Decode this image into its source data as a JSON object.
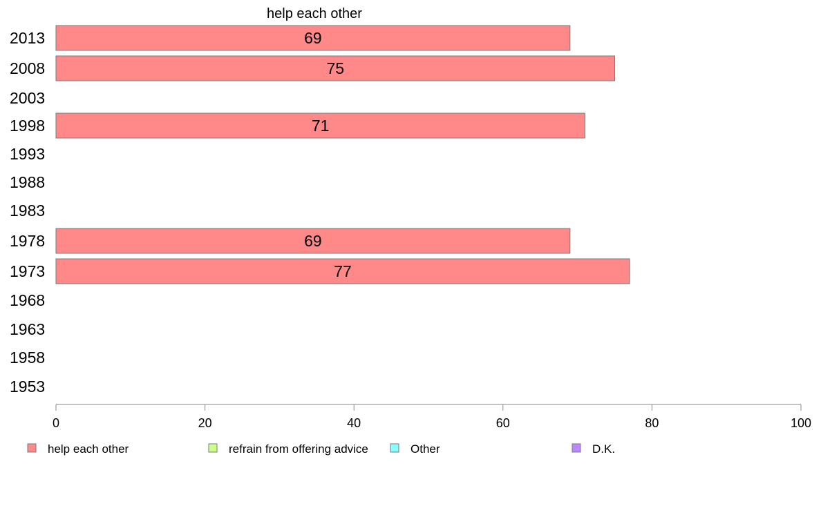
{
  "chart_data": {
    "type": "bar",
    "orientation": "horizontal",
    "series_title": "help each other",
    "categories": [
      "2013",
      "2008",
      "2003",
      "1998",
      "1993",
      "1988",
      "1983",
      "1978",
      "1973",
      "1968",
      "1963",
      "1958",
      "1953"
    ],
    "series": [
      {
        "name": "help each other",
        "color": "#ff8888",
        "values": [
          69,
          75,
          null,
          71,
          null,
          null,
          null,
          69,
          77,
          null,
          null,
          null,
          null
        ]
      }
    ],
    "xlim": [
      0,
      100
    ],
    "xticks": [
      0,
      20,
      40,
      60,
      80,
      100
    ],
    "legend": {
      "placement": "bottom",
      "items": [
        {
          "label": "help each other",
          "color": "#ff8888"
        },
        {
          "label": "refrain from offering advice",
          "color": "#ccff88"
        },
        {
          "label": "Other",
          "color": "#88ffff"
        },
        {
          "label": "D.K.",
          "color": "#bb88ff"
        }
      ]
    },
    "grid": false
  }
}
